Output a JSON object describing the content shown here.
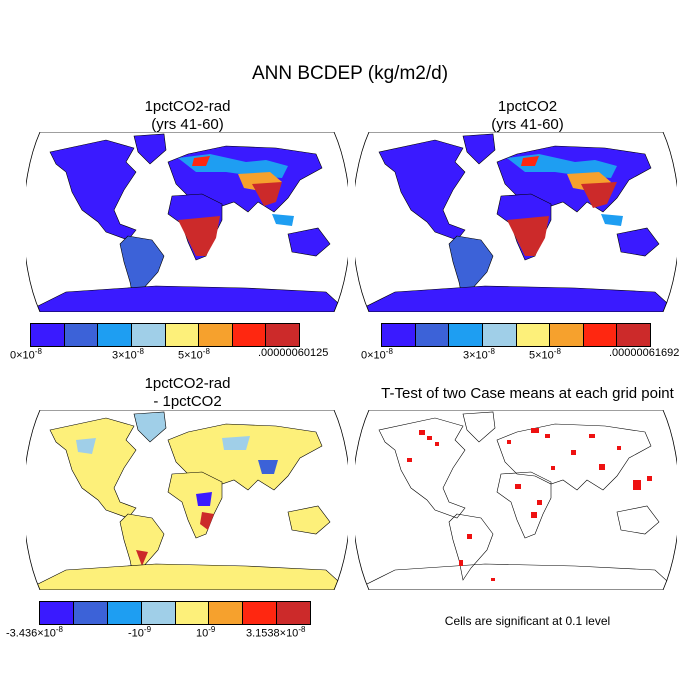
{
  "title": "ANN BCDEP (kg/m2/d)",
  "panels": [
    {
      "title_line1": "1pctCO2-rad",
      "title_line2": "(yrs 41-60)"
    },
    {
      "title_line1": "1pctCO2",
      "title_line2": "(yrs 41-60)"
    },
    {
      "title_line1": "1pctCO2-rad",
      "title_line2": "- 1pctCO2"
    },
    {
      "title_line1": "T-Test of two Case means at each grid point",
      "title_line2": ""
    }
  ],
  "colorbars": {
    "c1": {
      "colors": [
        "#3a1aff",
        "#3c62d8",
        "#1e9ef2",
        "#a0cfe8",
        "#fdf07a",
        "#f6a12d",
        "#ff2710",
        "#cc2a2a"
      ],
      "labels": [
        {
          "base": "0×10",
          "exp": "-8"
        },
        {
          "base": "3×10",
          "exp": "-8"
        },
        {
          "base": "5×10",
          "exp": "-8"
        },
        {
          "base": ".00000060125",
          "exp": ""
        }
      ]
    },
    "c2": {
      "colors": [
        "#3a1aff",
        "#3c62d8",
        "#1e9ef2",
        "#a0cfe8",
        "#fdf07a",
        "#f6a12d",
        "#ff2710",
        "#cc2a2a"
      ],
      "labels": [
        {
          "base": "0×10",
          "exp": "-8"
        },
        {
          "base": "3×10",
          "exp": "-8"
        },
        {
          "base": "5×10",
          "exp": "-8"
        },
        {
          "base": ".00000061692",
          "exp": ""
        }
      ]
    },
    "c3": {
      "colors": [
        "#3a1aff",
        "#3c62d8",
        "#1e9ef2",
        "#a0cfe8",
        "#fdf07a",
        "#f6a12d",
        "#ff2710",
        "#cc2a2a"
      ],
      "labels": [
        {
          "base": "-3.436×10",
          "exp": "-8"
        },
        {
          "base": "-10",
          "exp": "-9"
        },
        {
          "base": "10",
          "exp": "-9"
        },
        {
          "base": "3.1538×10",
          "exp": "-8"
        }
      ]
    }
  },
  "note": "Cells are significant at 0.1 level",
  "map_fill": {
    "ocean": "#ffffff",
    "coast": "#000000",
    "significant": "#ee1111"
  }
}
